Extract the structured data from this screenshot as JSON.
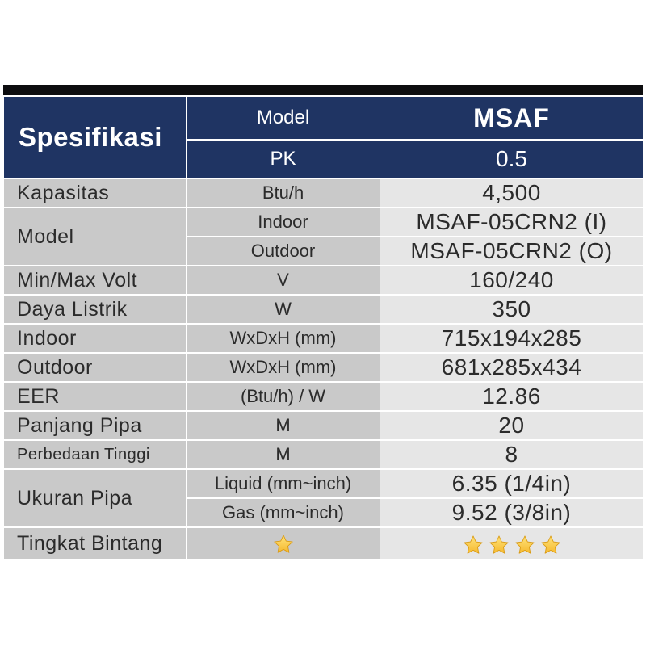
{
  "header": {
    "title": "Spesifikasi",
    "model_label": "Model",
    "model_value": "MSAF",
    "pk_label": "PK",
    "pk_value": "0.5"
  },
  "rows": {
    "kapasitas": {
      "label": "Kapasitas",
      "unit": "Btu/h",
      "value": "4,500"
    },
    "model": {
      "label": "Model",
      "indoor": {
        "unit": "Indoor",
        "value": "MSAF-05CRN2 (I)"
      },
      "outdoor": {
        "unit": "Outdoor",
        "value": "MSAF-05CRN2 (O)"
      }
    },
    "volt": {
      "label": "Min/Max Volt",
      "unit": "V",
      "value": "160/240"
    },
    "daya": {
      "label": "Daya Listrik",
      "unit": "W",
      "value": "350"
    },
    "indoor": {
      "label": "Indoor",
      "unit": "WxDxH (mm)",
      "value": "715x194x285"
    },
    "outdoor": {
      "label": "Outdoor",
      "unit": "WxDxH (mm)",
      "value": "681x285x434"
    },
    "eer": {
      "label": "EER",
      "unit": "(Btu/h) / W",
      "value": "12.86"
    },
    "panjang": {
      "label": "Panjang Pipa",
      "unit": "M",
      "value": "20"
    },
    "perbedaan": {
      "label": "Perbedaan Tinggi",
      "unit": "M",
      "value": "8"
    },
    "ukuran": {
      "label": "Ukuran Pipa",
      "liquid": {
        "unit": "Liquid (mm~inch)",
        "value": "6.35 (1/4in)"
      },
      "gas": {
        "unit": "Gas (mm~inch)",
        "value": "9.52 (3/8in)"
      }
    },
    "bintang": {
      "label": "Tingkat Bintang",
      "unit_stars": 1,
      "value_stars": 4
    }
  },
  "colors": {
    "header_bg": "#1f3463",
    "label_bg": "#c9c9c9",
    "value_bg": "#e6e6e6",
    "star": "#f5b82e"
  },
  "icons": [
    "star-icon"
  ]
}
